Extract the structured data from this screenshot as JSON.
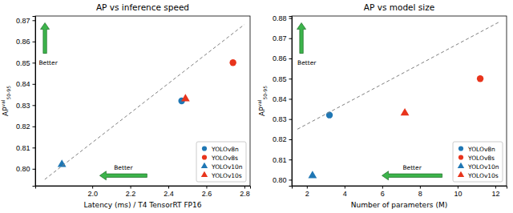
{
  "chart_data": [
    {
      "type": "scatter",
      "title": "AP vs inference speed",
      "xlabel": "Latency (ms) / T4 TensorRT FP16",
      "ylabel": "AP",
      "ylabel_superscript": "val",
      "ylabel_subscript": "50-95",
      "xlim": [
        1.7,
        2.83
      ],
      "ylim": [
        0.792,
        0.872
      ],
      "xticks": [
        {
          "value": 2.0,
          "label": "2.0"
        },
        {
          "value": 2.2,
          "label": "2.2"
        },
        {
          "value": 2.4,
          "label": "2.4"
        },
        {
          "value": 2.6,
          "label": "2.6"
        },
        {
          "value": 2.8,
          "label": "2.8"
        }
      ],
      "yticks": [
        {
          "value": 0.8,
          "label": "0.80"
        },
        {
          "value": 0.81,
          "label": "0.81"
        },
        {
          "value": 0.82,
          "label": "0.82"
        },
        {
          "value": 0.83,
          "label": "0.83"
        },
        {
          "value": 0.84,
          "label": "0.84"
        },
        {
          "value": 0.85,
          "label": "0.85"
        },
        {
          "value": 0.86,
          "label": "0.86"
        },
        {
          "value": 0.87,
          "label": "0.87"
        }
      ],
      "legend": "lower right",
      "annotations": [
        "Better",
        "Better"
      ],
      "series": [
        {
          "name": "YOLOv8n",
          "color": "#1f77b4",
          "marker": "circle",
          "x": [
            2.47
          ],
          "values": [
            0.832
          ]
        },
        {
          "name": "YOLOv8s",
          "color": "#e8341c",
          "marker": "circle",
          "x": [
            2.74
          ],
          "values": [
            0.85
          ]
        },
        {
          "name": "YOLOv10n",
          "color": "#1f77b4",
          "marker": "triangle",
          "x": [
            1.84
          ],
          "values": [
            0.802
          ]
        },
        {
          "name": "YOLOv10s",
          "color": "#e8341c",
          "marker": "triangle",
          "x": [
            2.49
          ],
          "values": [
            0.833
          ]
        },
        {
          "type": "line",
          "color": "#808080",
          "line_style": "dashed",
          "x": [
            1.75,
            2.8
          ],
          "values": [
            0.795,
            0.868
          ]
        }
      ]
    },
    {
      "type": "scatter",
      "title": "AP vs model size",
      "xlabel": "Number of parameters (M)",
      "ylabel": "AP",
      "ylabel_superscript": "val",
      "ylabel_subscript": "50-95",
      "xlim": [
        1.2,
        12.6
      ],
      "ylim": [
        0.797,
        0.881
      ],
      "xticks": [
        2,
        4,
        6,
        8,
        10,
        12
      ],
      "yticks": [
        {
          "value": 0.8,
          "label": "0.80"
        },
        {
          "value": 0.81,
          "label": "0.81"
        },
        {
          "value": 0.82,
          "label": "0.82"
        },
        {
          "value": 0.83,
          "label": "0.83"
        },
        {
          "value": 0.84,
          "label": "0.84"
        },
        {
          "value": 0.85,
          "label": "0.85"
        },
        {
          "value": 0.86,
          "label": "0.86"
        },
        {
          "value": 0.87,
          "label": "0.87"
        },
        {
          "value": 0.88,
          "label": "0.88"
        }
      ],
      "legend": "lower right",
      "annotations": [
        "Better",
        "Better"
      ],
      "series": [
        {
          "name": "YOLOv8n",
          "color": "#1f77b4",
          "marker": "circle",
          "x": [
            3.2
          ],
          "values": [
            0.832
          ]
        },
        {
          "name": "YOLOv8s",
          "color": "#e8341c",
          "marker": "circle",
          "x": [
            11.2
          ],
          "values": [
            0.85
          ]
        },
        {
          "name": "YOLOv10n",
          "color": "#1f77b4",
          "marker": "triangle",
          "x": [
            2.3
          ],
          "values": [
            0.802
          ]
        },
        {
          "name": "YOLOv10s",
          "color": "#e8341c",
          "marker": "triangle",
          "x": [
            7.2
          ],
          "values": [
            0.833
          ]
        },
        {
          "type": "line",
          "color": "#808080",
          "line_style": "dashed",
          "x": [
            1.5,
            12.2
          ],
          "values": [
            0.825,
            0.878
          ]
        }
      ]
    }
  ]
}
